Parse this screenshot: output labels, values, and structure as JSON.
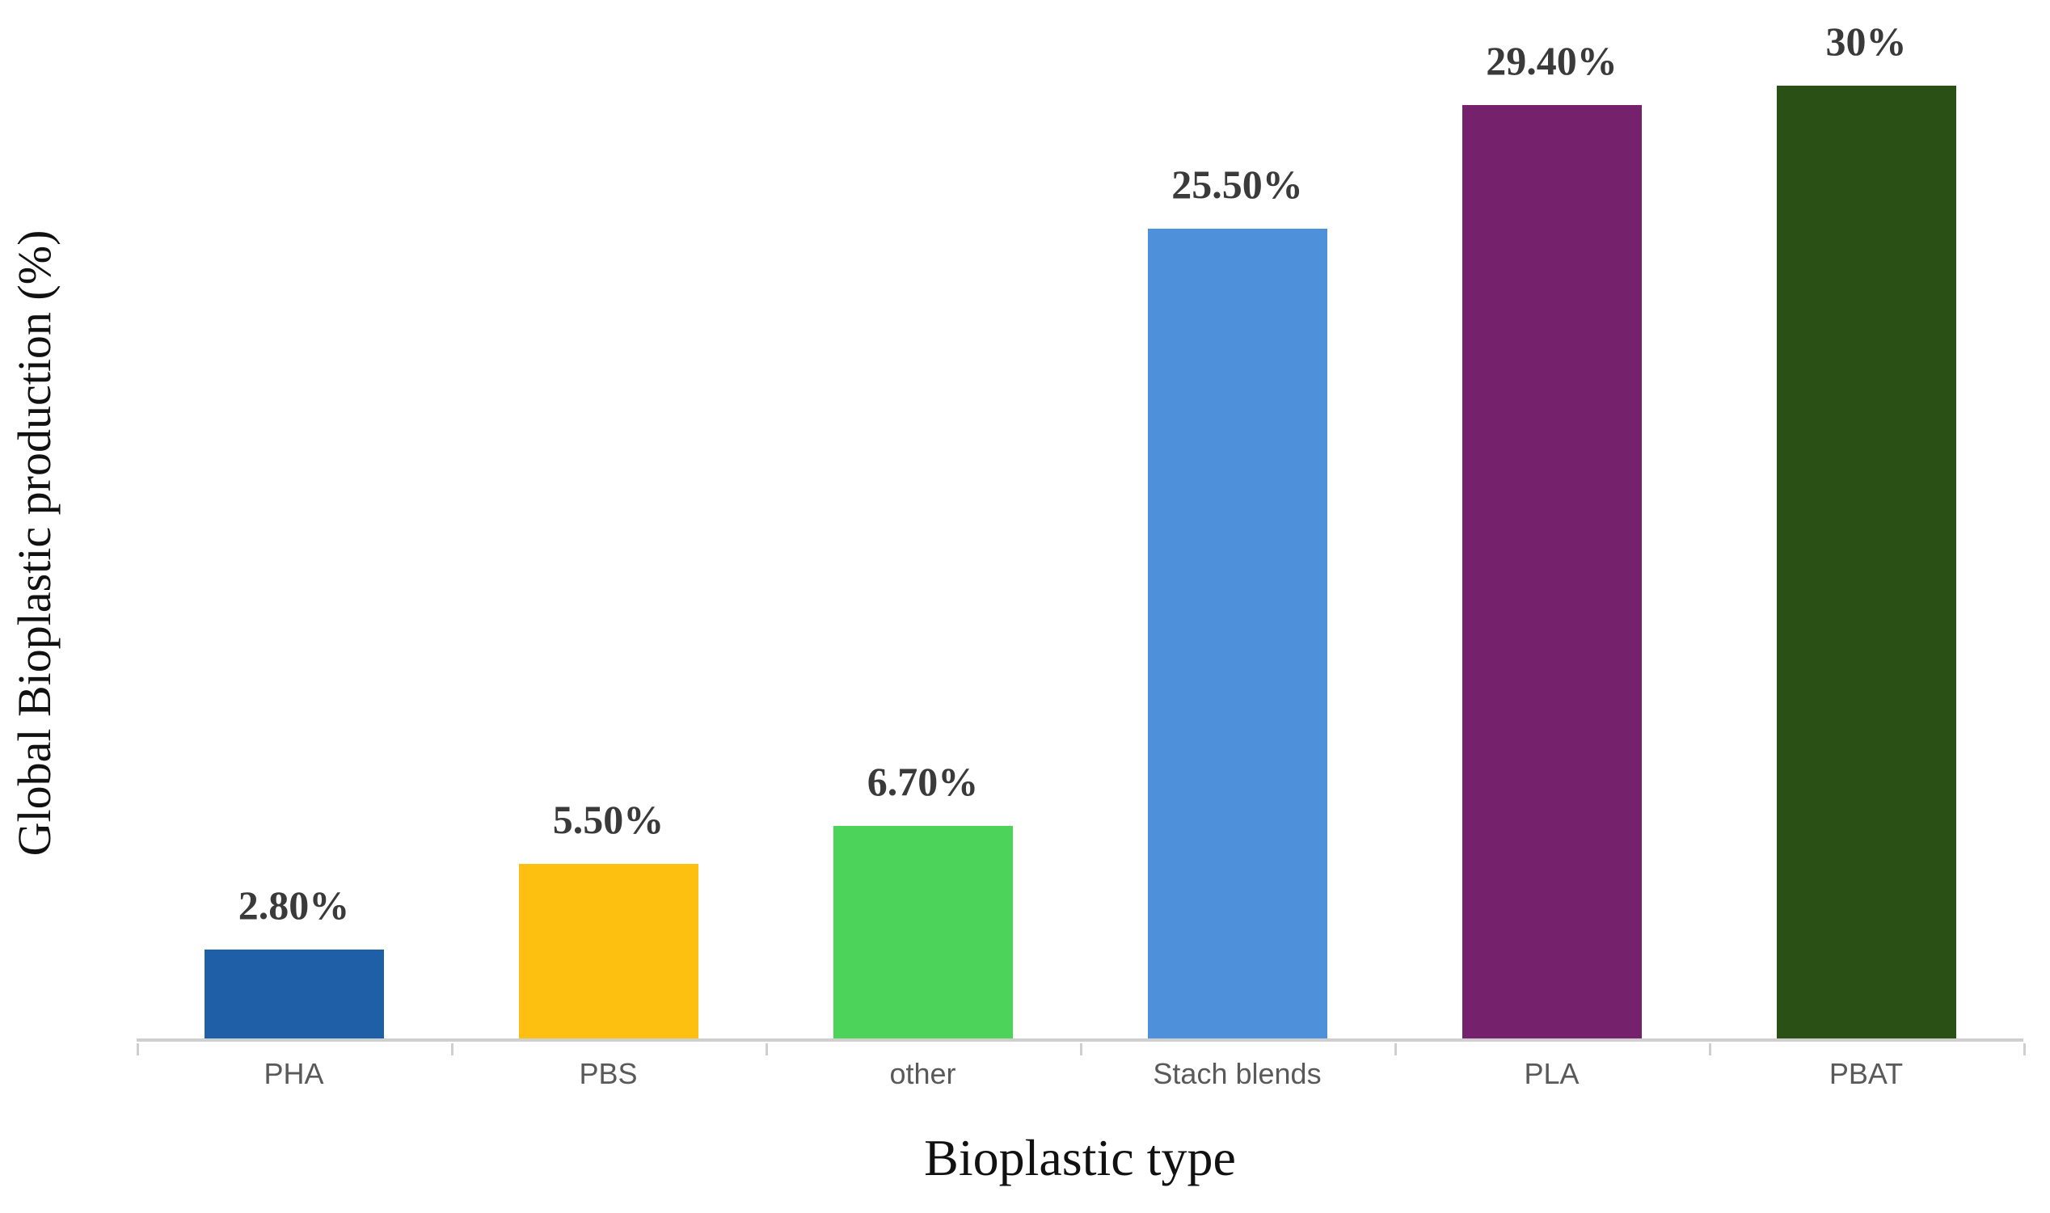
{
  "chart_data": {
    "type": "bar",
    "title": "",
    "xlabel": "Bioplastic type",
    "ylabel": "Global Bioplastic production (%)",
    "categories": [
      "PHA",
      "PBS",
      "other",
      "Stach blends",
      "PLA",
      "PBAT"
    ],
    "values": [
      2.8,
      5.5,
      6.7,
      25.5,
      29.4,
      30
    ],
    "value_labels": [
      "2.80%",
      "5.50%",
      "6.70%",
      "25.50%",
      "29.40%",
      "30%"
    ],
    "bar_colors": [
      "#1f5fa8",
      "#fdc010",
      "#4bd35a",
      "#4f90da",
      "#76216b",
      "#2a5015"
    ],
    "ylim": [
      0,
      30
    ],
    "grid": false,
    "legend": false,
    "axis_line_color": "#cfcfcf",
    "value_label_color": "#3a3a3a",
    "category_label_color": "#595959"
  }
}
